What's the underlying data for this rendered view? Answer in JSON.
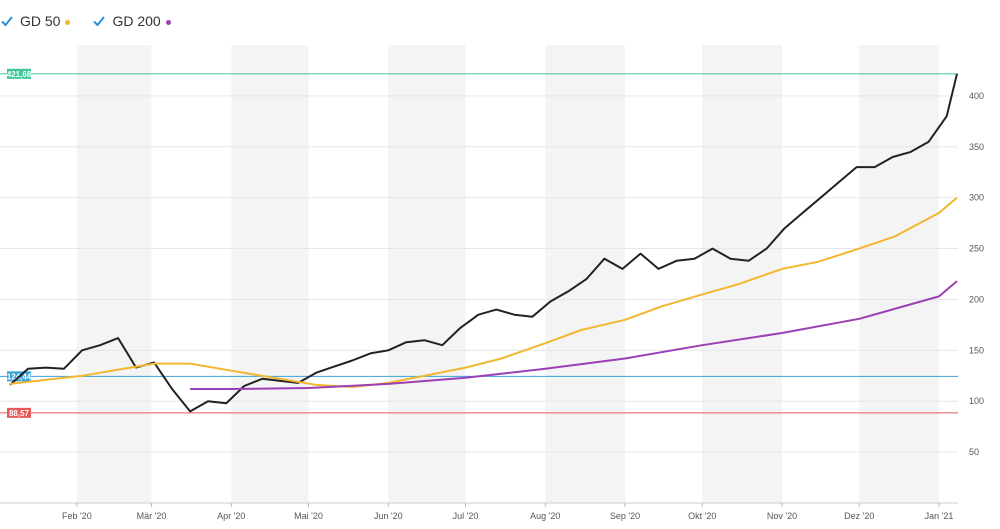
{
  "legend": [
    {
      "label": "GD 50",
      "color": "#f3b72f"
    },
    {
      "label": "GD 200",
      "color": "#9b3fb5"
    }
  ],
  "chart_data": {
    "type": "line",
    "ylim": [
      0,
      450
    ],
    "y_ticks": [
      50,
      100,
      150,
      200,
      250,
      300,
      350,
      400
    ],
    "x_ticks": [
      "Feb '20",
      "Mär '20",
      "Apr '20",
      "Mai '20",
      "Jun '20",
      "Jul '20",
      "Aug '20",
      "Sep '20",
      "Okt '20",
      "Nov '20",
      "Dez '20",
      "Jan '21"
    ],
    "reference_lines": [
      {
        "label": "421,68",
        "value": 421.68,
        "color": "#3fc79a"
      },
      {
        "label": "124,44",
        "value": 124.44,
        "color": "#36a3d9"
      },
      {
        "label": "88,57",
        "value": 88.57,
        "color": "#e8595a"
      }
    ],
    "series": [
      {
        "color": "#222222",
        "x": [
          "2020-01-06",
          "2020-01-13",
          "2020-01-20",
          "2020-01-27",
          "2020-02-03",
          "2020-02-10",
          "2020-02-17",
          "2020-02-24",
          "2020-03-02",
          "2020-03-09",
          "2020-03-16",
          "2020-03-23",
          "2020-03-30",
          "2020-04-06",
          "2020-04-13",
          "2020-04-20",
          "2020-04-27",
          "2020-05-04",
          "2020-05-11",
          "2020-05-18",
          "2020-05-25",
          "2020-06-01",
          "2020-06-08",
          "2020-06-15",
          "2020-06-22",
          "2020-06-29",
          "2020-07-06",
          "2020-07-13",
          "2020-07-20",
          "2020-07-27",
          "2020-08-03",
          "2020-08-10",
          "2020-08-17",
          "2020-08-24",
          "2020-08-31",
          "2020-09-07",
          "2020-09-14",
          "2020-09-21",
          "2020-09-28",
          "2020-10-05",
          "2020-10-12",
          "2020-10-19",
          "2020-10-26",
          "2020-11-02",
          "2020-11-09",
          "2020-11-16",
          "2020-11-23",
          "2020-11-30",
          "2020-12-07",
          "2020-12-14",
          "2020-12-21",
          "2020-12-28",
          "2021-01-04",
          "2021-01-08"
        ],
        "values": [
          116,
          132,
          133,
          132,
          150,
          155,
          162,
          133,
          138,
          112,
          90,
          100,
          98,
          115,
          122,
          120,
          118,
          128,
          134,
          140,
          147,
          150,
          158,
          160,
          155,
          172,
          185,
          190,
          185,
          183,
          198,
          208,
          220,
          240,
          230,
          245,
          230,
          238,
          240,
          250,
          240,
          238,
          250,
          270,
          285,
          300,
          315,
          330,
          330,
          340,
          345,
          355,
          380,
          421.68
        ]
      },
      {
        "name": "GD 50",
        "color": "#f3b72f",
        "x": [
          "2020-01-06",
          "2020-02-03",
          "2020-03-02",
          "2020-03-16",
          "2020-04-01",
          "2020-04-20",
          "2020-05-04",
          "2020-05-18",
          "2020-06-01",
          "2020-06-15",
          "2020-07-01",
          "2020-07-15",
          "2020-08-01",
          "2020-08-15",
          "2020-09-01",
          "2020-09-15",
          "2020-10-01",
          "2020-10-15",
          "2020-11-01",
          "2020-11-15",
          "2020-12-01",
          "2020-12-15",
          "2021-01-01",
          "2021-01-08"
        ],
        "values": [
          117,
          125,
          137,
          137,
          130,
          122,
          116,
          114,
          118,
          125,
          133,
          142,
          157,
          170,
          180,
          193,
          205,
          215,
          230,
          237,
          250,
          262,
          285,
          300
        ]
      },
      {
        "name": "GD 200",
        "color": "#9b3fb5",
        "x": [
          "2020-03-16",
          "2020-04-01",
          "2020-05-01",
          "2020-06-01",
          "2020-07-01",
          "2020-08-01",
          "2020-09-01",
          "2020-10-01",
          "2020-11-01",
          "2020-12-01",
          "2021-01-01",
          "2021-01-08"
        ],
        "values": [
          112,
          112,
          113,
          117,
          123,
          132,
          142,
          155,
          167,
          181,
          203,
          218
        ]
      }
    ]
  }
}
